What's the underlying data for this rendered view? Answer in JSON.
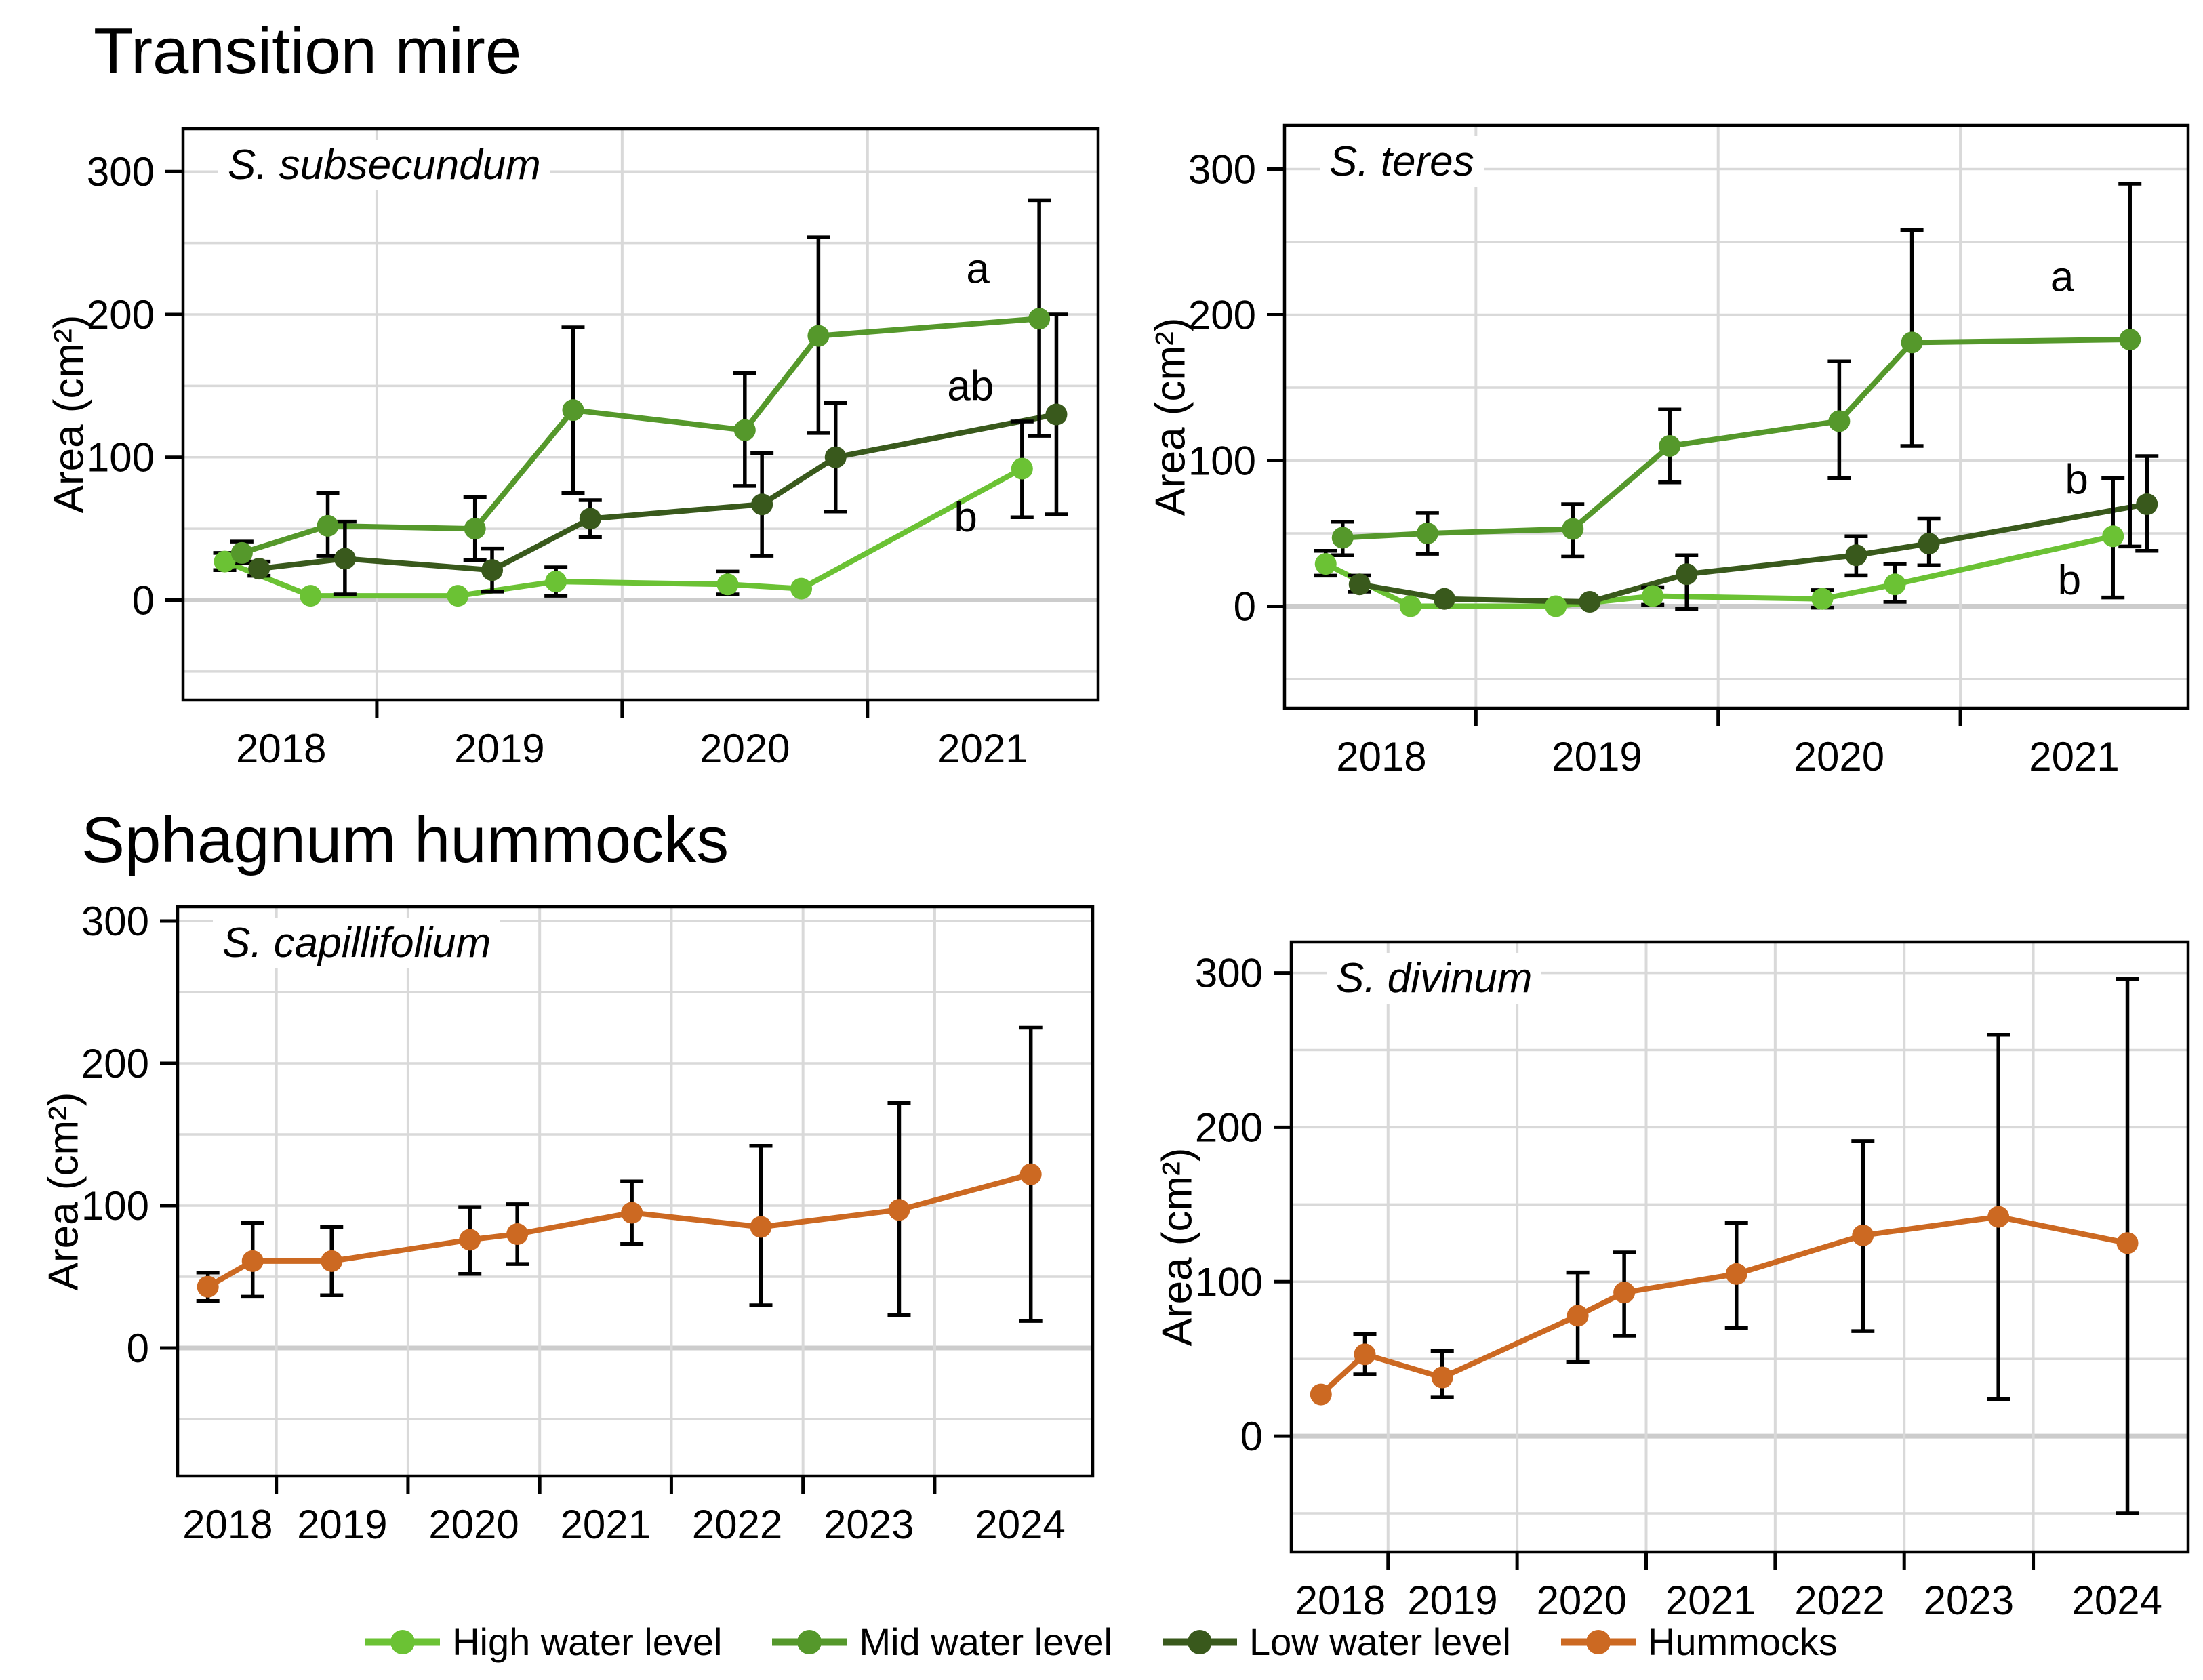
{
  "sections": [
    {
      "title": "Transition mire"
    },
    {
      "title": "Sphagnum hummocks"
    }
  ],
  "colors": {
    "high": "#6bc234",
    "mid": "#55982b",
    "low": "#39591c",
    "hummocks": "#cc6922",
    "grid": "#d9d9d9",
    "zero_grid": "#cccccc",
    "axis": "#000000",
    "error_bar": "#000000",
    "background": "#ffffff"
  },
  "legend": {
    "items": [
      {
        "label": "High water level",
        "color_key": "high"
      },
      {
        "label": "Mid water level",
        "color_key": "mid"
      },
      {
        "label": "Low water level",
        "color_key": "low"
      },
      {
        "label": "Hummocks",
        "color_key": "hummocks"
      }
    ]
  },
  "chart_data": [
    {
      "type": "line",
      "title": "S. subsecundum",
      "section": "Transition mire",
      "ylabel": "Area (cm²)",
      "xlim": [
        2018.21,
        2021.94
      ],
      "ylim": [
        -70,
        330
      ],
      "ygrid": [
        -50,
        0,
        50,
        100,
        150,
        200,
        250,
        300
      ],
      "yticks": [
        {
          "v": 0,
          "label": "0"
        },
        {
          "v": 100,
          "label": "100"
        },
        {
          "v": 200,
          "label": "200"
        },
        {
          "v": 300,
          "label": "300"
        }
      ],
      "xticks": [
        2019,
        2020,
        2021
      ],
      "xlabels": [
        {
          "x": 2018.61,
          "label": "2018"
        },
        {
          "x": 2019.5,
          "label": "2019"
        },
        {
          "x": 2020.5,
          "label": "2020"
        },
        {
          "x": 2021.47,
          "label": "2021"
        }
      ],
      "x": [
        2018.45,
        2018.8,
        2019.4,
        2019.8,
        2020.5,
        2020.8,
        2021.7
      ],
      "series": [
        {
          "name": "High water level",
          "color_key": "high",
          "dx": -0.07,
          "values": [
            27,
            3,
            3,
            13,
            11,
            8,
            92
          ],
          "lo": [
            21,
            null,
            null,
            3,
            4,
            null,
            58
          ],
          "hi": [
            33,
            null,
            null,
            23,
            20,
            null,
            125
          ]
        },
        {
          "name": "Mid water level",
          "color_key": "mid",
          "dx": 0,
          "values": [
            33,
            52,
            50,
            133,
            119,
            185,
            197
          ],
          "lo": [
            26,
            31,
            28,
            75,
            80,
            117,
            115
          ],
          "hi": [
            41,
            75,
            72,
            191,
            159,
            254,
            280
          ]
        },
        {
          "name": "Low water level",
          "color_key": "low",
          "dx": 0.07,
          "values": [
            22,
            29,
            21,
            57,
            67,
            100,
            130
          ],
          "lo": [
            17,
            4,
            6,
            44,
            31,
            62,
            60
          ],
          "hi": [
            27,
            55,
            36,
            70,
            103,
            138,
            200
          ]
        }
      ],
      "annotations": [
        {
          "label": "a",
          "x": 2021.45,
          "y": 232
        },
        {
          "label": "ab",
          "x": 2021.42,
          "y": 150
        },
        {
          "label": "b",
          "x": 2021.4,
          "y": 58
        }
      ]
    },
    {
      "type": "line",
      "title": "S. teres",
      "section": "Transition mire",
      "ylabel": "Area (cm²)",
      "xlim": [
        2018.21,
        2021.94
      ],
      "ylim": [
        -70,
        330
      ],
      "ygrid": [
        -50,
        0,
        50,
        100,
        150,
        200,
        250,
        300
      ],
      "yticks": [
        {
          "v": 0,
          "label": "0"
        },
        {
          "v": 100,
          "label": "100"
        },
        {
          "v": 200,
          "label": "200"
        },
        {
          "v": 300,
          "label": "300"
        }
      ],
      "xticks": [
        2019,
        2020,
        2021
      ],
      "xlabels": [
        {
          "x": 2018.61,
          "label": "2018"
        },
        {
          "x": 2019.5,
          "label": "2019"
        },
        {
          "x": 2020.5,
          "label": "2020"
        },
        {
          "x": 2021.47,
          "label": "2021"
        }
      ],
      "x": [
        2018.45,
        2018.8,
        2019.4,
        2019.8,
        2020.5,
        2020.8,
        2021.7
      ],
      "series": [
        {
          "name": "High water level",
          "color_key": "high",
          "dx": -0.07,
          "values": [
            29,
            0,
            0,
            7,
            5,
            15,
            48
          ],
          "lo": [
            21,
            null,
            null,
            1,
            -1,
            3,
            6
          ],
          "hi": [
            38,
            null,
            null,
            13,
            11,
            29,
            88
          ]
        },
        {
          "name": "Mid water level",
          "color_key": "mid",
          "dx": 0,
          "values": [
            47,
            50,
            53,
            110,
            127,
            181,
            183
          ],
          "lo": [
            35,
            36,
            34,
            85,
            88,
            110,
            41
          ],
          "hi": [
            58,
            64,
            70,
            135,
            168,
            258,
            290
          ]
        },
        {
          "name": "Low water level",
          "color_key": "low",
          "dx": 0.07,
          "values": [
            15,
            5,
            3,
            22,
            35,
            43,
            70
          ],
          "lo": [
            10,
            null,
            null,
            -2,
            21,
            28,
            38
          ],
          "hi": [
            21,
            null,
            null,
            35,
            48,
            60,
            103
          ]
        }
      ],
      "annotations": [
        {
          "label": "a",
          "x": 2021.42,
          "y": 226
        },
        {
          "label": "b",
          "x": 2021.48,
          "y": 87
        },
        {
          "label": "b",
          "x": 2021.45,
          "y": 18
        }
      ]
    },
    {
      "type": "line",
      "title": "S. capillifolium",
      "section": "Sphagnum hummocks",
      "ylabel": "Area (cm²)",
      "xlim": [
        2018.25,
        2025.2
      ],
      "ylim": [
        -90,
        310
      ],
      "ygrid": [
        -50,
        0,
        50,
        100,
        150,
        200,
        250,
        300
      ],
      "yticks": [
        {
          "v": 0,
          "label": "0"
        },
        {
          "v": 100,
          "label": "100"
        },
        {
          "v": 200,
          "label": "200"
        },
        {
          "v": 300,
          "label": "300"
        }
      ],
      "xticks": [
        2019,
        2020,
        2021,
        2022,
        2023,
        2024
      ],
      "xlabels": [
        {
          "x": 2018.63,
          "label": "2018"
        },
        {
          "x": 2019.5,
          "label": "2019"
        },
        {
          "x": 2020.5,
          "label": "2020"
        },
        {
          "x": 2021.5,
          "label": "2021"
        },
        {
          "x": 2022.5,
          "label": "2022"
        },
        {
          "x": 2023.5,
          "label": "2023"
        },
        {
          "x": 2024.65,
          "label": "2024"
        }
      ],
      "x": [
        2018.48,
        2018.82,
        2019.42,
        2020.47,
        2020.83,
        2021.7,
        2022.68,
        2023.73,
        2024.73
      ],
      "series": [
        {
          "name": "Hummocks",
          "color_key": "hummocks",
          "dx": 0,
          "values": [
            43,
            61,
            61,
            76,
            80,
            95,
            85,
            97,
            122
          ],
          "lo": [
            33,
            36,
            37,
            52,
            59,
            73,
            30,
            23,
            19
          ],
          "hi": [
            53,
            88,
            85,
            99,
            101,
            117,
            142,
            172,
            225
          ]
        }
      ],
      "annotations": []
    },
    {
      "type": "line",
      "title": "S. divinum",
      "section": "Sphagnum hummocks",
      "ylabel": "Area (cm²)",
      "xlim": [
        2018.25,
        2025.2
      ],
      "ylim": [
        -75,
        320
      ],
      "ygrid": [
        -50,
        0,
        50,
        100,
        150,
        200,
        250,
        300
      ],
      "yticks": [
        {
          "v": 0,
          "label": "0"
        },
        {
          "v": 100,
          "label": "100"
        },
        {
          "v": 200,
          "label": "200"
        },
        {
          "v": 300,
          "label": "300"
        }
      ],
      "xticks": [
        2019,
        2020,
        2021,
        2022,
        2023,
        2024
      ],
      "xlabels": [
        {
          "x": 2018.63,
          "label": "2018"
        },
        {
          "x": 2019.5,
          "label": "2019"
        },
        {
          "x": 2020.5,
          "label": "2020"
        },
        {
          "x": 2021.5,
          "label": "2021"
        },
        {
          "x": 2022.5,
          "label": "2022"
        },
        {
          "x": 2023.5,
          "label": "2023"
        },
        {
          "x": 2024.65,
          "label": "2024"
        }
      ],
      "x": [
        2018.48,
        2018.82,
        2019.42,
        2020.47,
        2020.83,
        2021.7,
        2022.68,
        2023.73,
        2024.73
      ],
      "series": [
        {
          "name": "Hummocks",
          "color_key": "hummocks",
          "dx": 0,
          "values": [
            27,
            53,
            38,
            78,
            93,
            105,
            130,
            142,
            125
          ],
          "lo": [
            null,
            40,
            25,
            48,
            65,
            70,
            68,
            24,
            -50
          ],
          "hi": [
            null,
            66,
            55,
            106,
            119,
            138,
            191,
            260,
            296
          ]
        }
      ],
      "annotations": []
    }
  ]
}
